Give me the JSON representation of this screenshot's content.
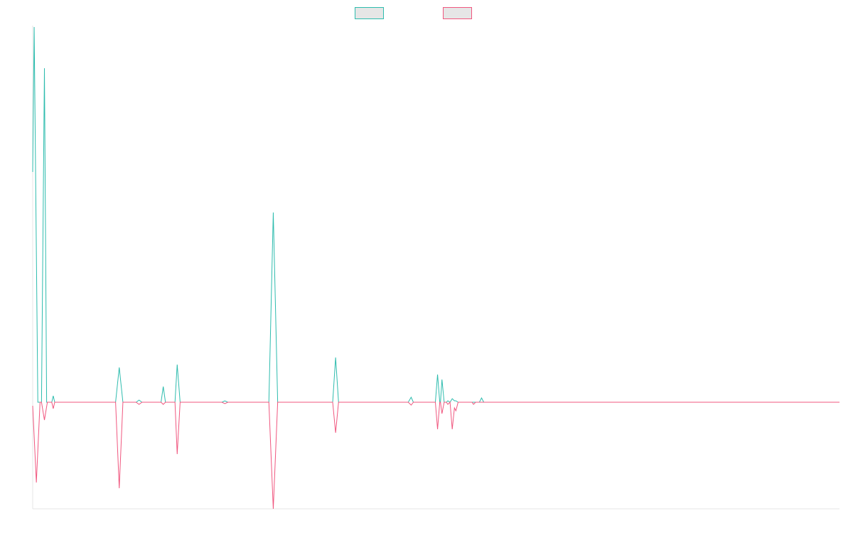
{
  "chart_data": {
    "type": "line",
    "title": "",
    "xlabel": "",
    "ylabel": "",
    "legend": {
      "placement": "top-center",
      "entries": [
        {
          "color": "#2ebcae",
          "fill": "#e6e6e6"
        },
        {
          "color": "#f0577f",
          "fill": "#e6e6e6"
        }
      ]
    },
    "grid": false,
    "x_range": [
      0,
      1100
    ],
    "y_range": [
      -150,
      530
    ],
    "colors": {
      "series_a": "#2ebcae",
      "series_b": "#f0577f",
      "axis": "#e6e6e6"
    },
    "series": [
      {
        "color": "#2ebcae",
        "points": [
          [
            0,
            324
          ],
          [
            2,
            528
          ],
          [
            7,
            0
          ],
          [
            12,
            0
          ],
          [
            16,
            470
          ],
          [
            19,
            0
          ],
          [
            26,
            0
          ],
          [
            28,
            9
          ],
          [
            30,
            0
          ],
          [
            113,
            0
          ],
          [
            118,
            49
          ],
          [
            123,
            0
          ],
          [
            141,
            0
          ],
          [
            145,
            3
          ],
          [
            149,
            0
          ],
          [
            175,
            0
          ],
          [
            178,
            22
          ],
          [
            181,
            0
          ],
          [
            190,
            0
          ],
          [
            194,
            0
          ],
          [
            197,
            53
          ],
          [
            201,
            0
          ],
          [
            258,
            0
          ],
          [
            262,
            2
          ],
          [
            266,
            0
          ],
          [
            322,
            0
          ],
          [
            328,
            267
          ],
          [
            334,
            0
          ],
          [
            409,
            0
          ],
          [
            413,
            63
          ],
          [
            417,
            0
          ],
          [
            512,
            0
          ],
          [
            516,
            7
          ],
          [
            519,
            0
          ],
          [
            549,
            0
          ],
          [
            552,
            39
          ],
          [
            555,
            0
          ],
          [
            556,
            0
          ],
          [
            558,
            32
          ],
          [
            561,
            0
          ],
          [
            564,
            0
          ],
          [
            566,
            2
          ],
          [
            569,
            0
          ],
          [
            572,
            5
          ],
          [
            575,
            2
          ],
          [
            577,
            2
          ],
          [
            580,
            0
          ],
          [
            599,
            0
          ],
          [
            601,
            0
          ],
          [
            604,
            0
          ],
          [
            609,
            0
          ],
          [
            612,
            6
          ],
          [
            615,
            0
          ],
          [
            1100,
            0
          ]
        ]
      },
      {
        "color": "#f0577f",
        "points": [
          [
            0,
            -5
          ],
          [
            5,
            -113
          ],
          [
            10,
            0
          ],
          [
            12,
            0
          ],
          [
            16,
            -25
          ],
          [
            20,
            0
          ],
          [
            26,
            0
          ],
          [
            28,
            -9
          ],
          [
            30,
            0
          ],
          [
            113,
            0
          ],
          [
            118,
            -121
          ],
          [
            123,
            0
          ],
          [
            141,
            0
          ],
          [
            145,
            -3
          ],
          [
            149,
            0
          ],
          [
            175,
            0
          ],
          [
            178,
            -3
          ],
          [
            181,
            0
          ],
          [
            190,
            0
          ],
          [
            194,
            0
          ],
          [
            197,
            -73
          ],
          [
            201,
            0
          ],
          [
            258,
            0
          ],
          [
            262,
            -2
          ],
          [
            266,
            0
          ],
          [
            322,
            0
          ],
          [
            328,
            -150
          ],
          [
            334,
            0
          ],
          [
            409,
            0
          ],
          [
            413,
            -43
          ],
          [
            417,
            0
          ],
          [
            512,
            0
          ],
          [
            516,
            -4
          ],
          [
            519,
            0
          ],
          [
            549,
            0
          ],
          [
            552,
            -38
          ],
          [
            555,
            0
          ],
          [
            556,
            0
          ],
          [
            558,
            -16
          ],
          [
            561,
            0
          ],
          [
            564,
            0
          ],
          [
            566,
            -3
          ],
          [
            569,
            0
          ],
          [
            572,
            -38
          ],
          [
            575,
            -8
          ],
          [
            577,
            -12
          ],
          [
            580,
            0
          ],
          [
            599,
            0
          ],
          [
            601,
            -3
          ],
          [
            604,
            0
          ],
          [
            609,
            0
          ],
          [
            612,
            0
          ],
          [
            615,
            0
          ],
          [
            1100,
            0
          ]
        ]
      }
    ]
  }
}
